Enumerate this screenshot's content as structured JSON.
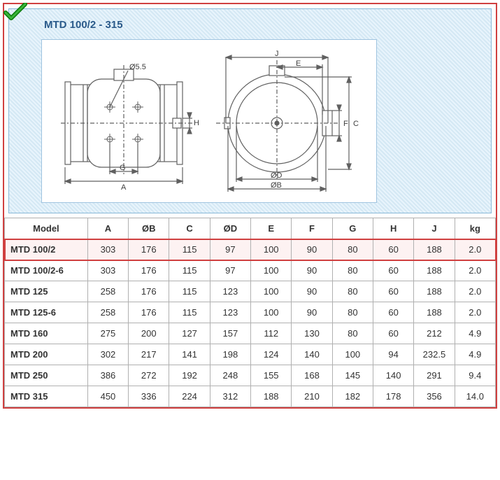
{
  "title": "MTD 100/2 - 315",
  "diagram": {
    "labels": {
      "phi55": "Ø5.5",
      "A": "A",
      "G": "G",
      "H": "H",
      "J": "J",
      "E": "E",
      "C": "C",
      "F": "F",
      "phiD": "ØD",
      "phiB": "ØB"
    },
    "line_color": "#606060",
    "line_width": 1.2,
    "bg": "#ffffff"
  },
  "table": {
    "columns": [
      "Model",
      "A",
      "ØB",
      "C",
      "ØD",
      "E",
      "F",
      "G",
      "H",
      "J",
      "kg"
    ],
    "highlight_row_index": 0,
    "rows": [
      [
        "MTD 100/2",
        "303",
        "176",
        "115",
        "97",
        "100",
        "90",
        "80",
        "60",
        "188",
        "2.0"
      ],
      [
        "MTD 100/2-6",
        "303",
        "176",
        "115",
        "97",
        "100",
        "90",
        "80",
        "60",
        "188",
        "2.0"
      ],
      [
        "MTD 125",
        "258",
        "176",
        "115",
        "123",
        "100",
        "90",
        "80",
        "60",
        "188",
        "2.0"
      ],
      [
        "MTD 125-6",
        "258",
        "176",
        "115",
        "123",
        "100",
        "90",
        "80",
        "60",
        "188",
        "2.0"
      ],
      [
        "MTD 160",
        "275",
        "200",
        "127",
        "157",
        "112",
        "130",
        "80",
        "60",
        "212",
        "4.9"
      ],
      [
        "MTD 200",
        "302",
        "217",
        "141",
        "198",
        "124",
        "140",
        "100",
        "94",
        "232.5",
        "4.9"
      ],
      [
        "MTD 250",
        "386",
        "272",
        "192",
        "248",
        "155",
        "168",
        "145",
        "140",
        "291",
        "9.4"
      ],
      [
        "MTD 315",
        "450",
        "336",
        "224",
        "312",
        "188",
        "210",
        "182",
        "178",
        "356",
        "14.0"
      ]
    ]
  }
}
